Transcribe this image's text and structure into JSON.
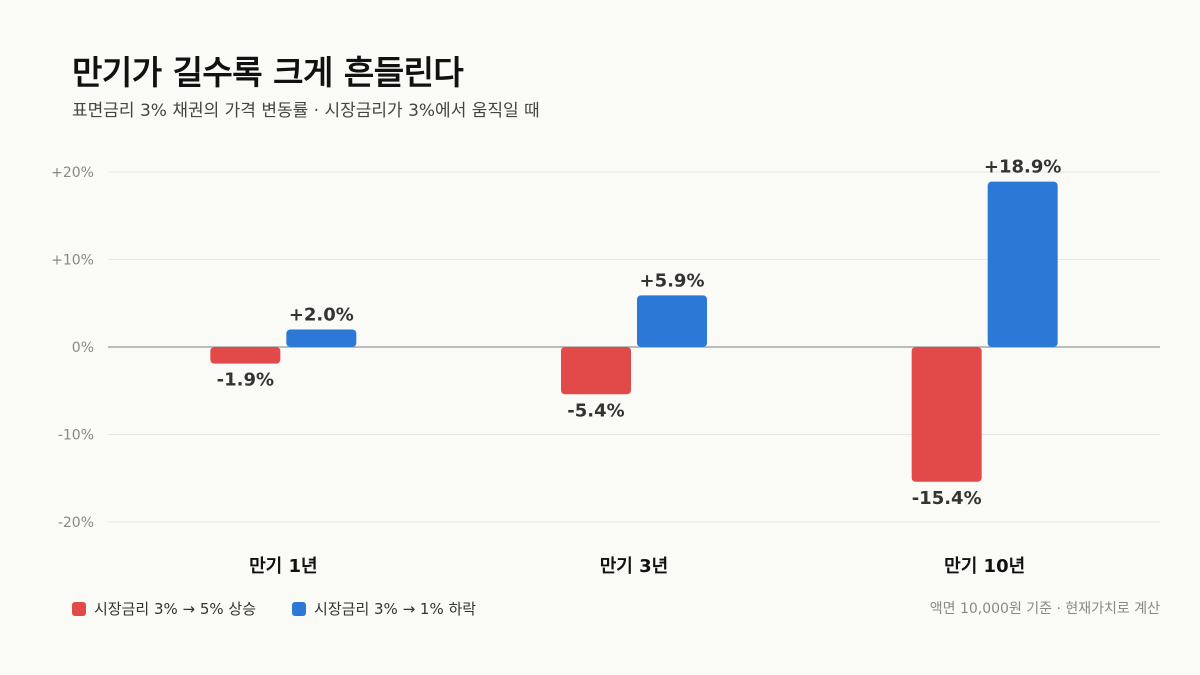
{
  "title": "만기가 길수록 크게 흔들린다",
  "subtitle": "표면금리 3% 채권의 가격 변동률 · 시장금리가 3%에서 움직일 때",
  "footnote": "액면 10,000원 기준 · 현재가치로 계산",
  "colors": {
    "rate_up": "#e24a4a",
    "rate_down": "#2b78d6",
    "grid": "#e6e6e2",
    "zero_line": "#bbbbbb",
    "tick_text": "#888888",
    "label_text": "#333333"
  },
  "chart_data": {
    "type": "bar",
    "title": "만기가 길수록 크게 흔들린다",
    "subtitle": "표면금리 3% 채권의 가격 변동률 · 시장금리가 3%에서 움직일 때",
    "categories": [
      "만기 1년",
      "만기 3년",
      "만기 10년"
    ],
    "series": [
      {
        "name": "시장금리 3% → 5% 상승",
        "color": "#e24a4a",
        "values": [
          -1.9,
          -5.4,
          -15.4
        ],
        "labels": [
          "-1.9%",
          "-5.4%",
          "-15.4%"
        ]
      },
      {
        "name": "시장금리 3% → 1% 하락",
        "color": "#2b78d6",
        "values": [
          2.0,
          5.9,
          18.9
        ],
        "labels": [
          "+2.0%",
          "+5.9%",
          "+18.9%"
        ]
      }
    ],
    "ylim": [
      -20,
      20
    ],
    "yticks": [
      20,
      10,
      0,
      -10,
      -20
    ],
    "ytick_labels": [
      "+20%",
      "+10%",
      "0%",
      "-10%",
      "-20%"
    ],
    "grid": true,
    "legend_position": "bottom-left"
  }
}
